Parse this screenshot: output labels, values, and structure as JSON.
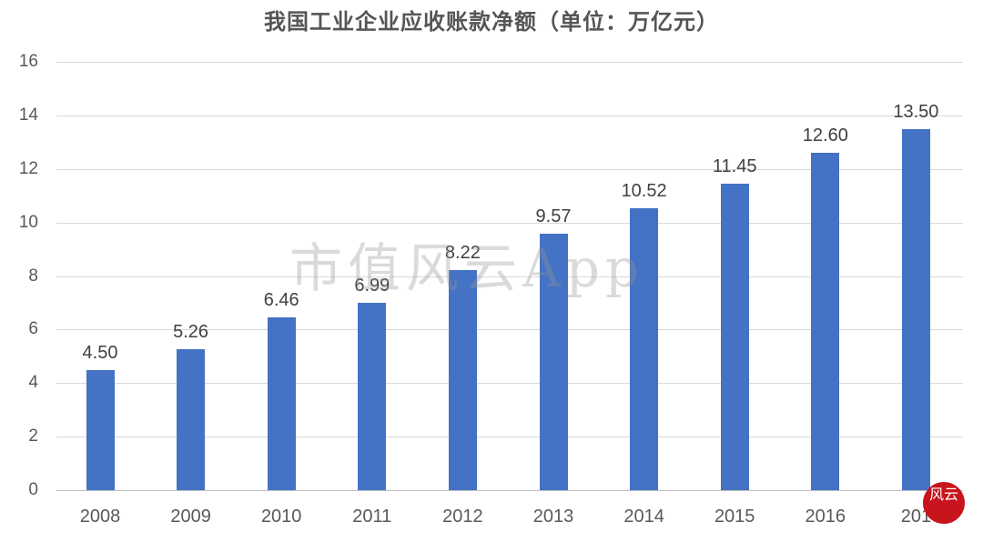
{
  "chart_data": {
    "type": "bar",
    "title": "我国工业企业应收账款净额（单位：万亿元）",
    "xlabel": "",
    "ylabel": "",
    "categories": [
      "2008",
      "2009",
      "2010",
      "2011",
      "2012",
      "2013",
      "2014",
      "2015",
      "2016",
      "2017"
    ],
    "values": [
      4.5,
      5.26,
      6.46,
      6.99,
      8.22,
      9.57,
      10.52,
      11.45,
      12.6,
      13.5
    ],
    "value_labels": [
      "4.50",
      "5.26",
      "6.46",
      "6.99",
      "8.22",
      "9.57",
      "10.52",
      "11.45",
      "12.60",
      "13.50"
    ],
    "ylim": [
      0,
      16
    ],
    "yticks": [
      "0",
      "2",
      "4",
      "6",
      "8",
      "10",
      "12",
      "14",
      "16"
    ],
    "grid": true,
    "legend": null,
    "bar_color": "#4472c4",
    "x_tick_labels_visible": [
      "2008",
      "2009",
      "2010",
      "2011",
      "2012",
      "2013",
      "2014",
      "2015",
      "2016",
      "201"
    ]
  },
  "watermark": "市值风云App",
  "seal": "风云"
}
